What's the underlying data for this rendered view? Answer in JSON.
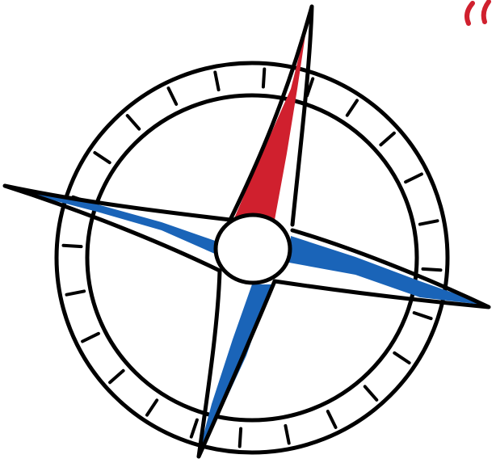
{
  "illustration": {
    "subject": "compass-rose",
    "colors": {
      "ink": "#000000",
      "north_fill": "#d0202e",
      "arm_fill": "#1a64b8",
      "accent": "#d0202e",
      "background": "#ffffff"
    },
    "outer_ring_tick_count": 24
  }
}
